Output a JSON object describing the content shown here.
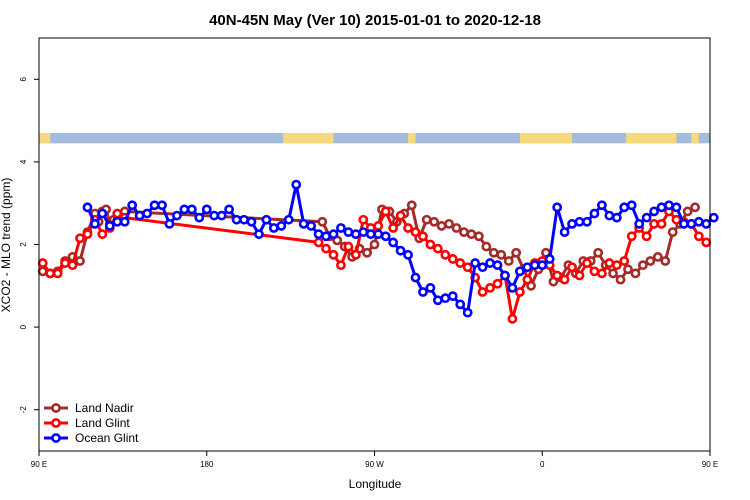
{
  "chart_data": {
    "type": "line",
    "title": "40N-45N May (Ver 10)   2015-01-01 to 2020-12-18",
    "xlabel": "Longitude",
    "ylabel": "XCO2 - MLO trend (ppm)",
    "xlim": [
      90,
      450
    ],
    "ylim": [
      -3,
      7
    ],
    "x_ticks": [
      {
        "value": 90,
        "label": "90 E"
      },
      {
        "value": 180,
        "label": "180"
      },
      {
        "value": 270,
        "label": "90 W"
      },
      {
        "value": 360,
        "label": "0"
      },
      {
        "value": 450,
        "label": "90 E"
      },
      {
        "value": 540,
        "label": "180"
      }
    ],
    "y_ticks": [
      {
        "value": -2,
        "label": "-2"
      },
      {
        "value": 0,
        "label": "0"
      },
      {
        "value": 2,
        "label": "2"
      },
      {
        "value": 4,
        "label": "4"
      },
      {
        "value": 6,
        "label": "6"
      }
    ],
    "land_ocean_strip": {
      "y_range": [
        4.45,
        4.7
      ],
      "ocean_color": "#a3bcdc",
      "land_color": "#f5d97a",
      "land_segments": [
        [
          90,
          96
        ],
        [
          221,
          248
        ],
        [
          288,
          292
        ],
        [
          348,
          376
        ],
        [
          405,
          432
        ],
        [
          440,
          444
        ]
      ]
    },
    "legend_position": "bottom-left",
    "series": [
      {
        "name": "Land Nadir",
        "color": "#a52a2a",
        "x": [
          92,
          96,
          100,
          104,
          108,
          112,
          116,
          120,
          122,
          124,
          126,
          128,
          130,
          132,
          136,
          242,
          246,
          250,
          254,
          258,
          262,
          266,
          270,
          274,
          278,
          282,
          286,
          290,
          294,
          298,
          302,
          306,
          310,
          314,
          318,
          322,
          326,
          330,
          334,
          338,
          342,
          346,
          350,
          354,
          358,
          362,
          366,
          370,
          374,
          378,
          382,
          386,
          390,
          394,
          398,
          402,
          406,
          410,
          414,
          418,
          422,
          426,
          430,
          434,
          438,
          442
        ],
        "values": [
          1.35,
          1.3,
          1.35,
          1.6,
          1.7,
          1.6,
          2.3,
          2.75,
          2.55,
          2.8,
          2.85,
          2.5,
          2.6,
          2.7,
          2.8,
          2.55,
          2.2,
          2.1,
          1.95,
          1.7,
          1.9,
          1.8,
          2.0,
          2.85,
          2.8,
          2.55,
          2.75,
          2.95,
          2.15,
          2.6,
          2.55,
          2.45,
          2.5,
          2.4,
          2.3,
          2.25,
          2.2,
          1.95,
          1.8,
          1.75,
          1.6,
          1.8,
          1.4,
          1.0,
          1.4,
          1.8,
          1.1,
          1.2,
          1.5,
          1.3,
          1.6,
          1.6,
          1.8,
          1.5,
          1.3,
          1.15,
          1.4,
          1.3,
          1.5,
          1.6,
          1.7,
          1.6,
          2.3,
          2.5,
          2.8,
          2.9
        ]
      },
      {
        "name": "Land Glint",
        "color": "#ff0000",
        "x": [
          92,
          96,
          100,
          104,
          108,
          112,
          116,
          120,
          124,
          128,
          132,
          136,
          240,
          244,
          248,
          252,
          256,
          260,
          264,
          268,
          272,
          276,
          280,
          284,
          288,
          292,
          296,
          300,
          304,
          308,
          312,
          316,
          320,
          324,
          328,
          332,
          336,
          340,
          344,
          348,
          352,
          356,
          360,
          364,
          368,
          372,
          376,
          380,
          384,
          388,
          392,
          396,
          400,
          404,
          408,
          412,
          416,
          420,
          424,
          428,
          432,
          436,
          440,
          444,
          448
        ],
        "values": [
          1.55,
          1.3,
          1.3,
          1.55,
          1.5,
          2.15,
          2.25,
          2.6,
          2.25,
          2.4,
          2.75,
          2.65,
          2.05,
          1.9,
          1.75,
          1.5,
          1.95,
          1.75,
          2.6,
          2.4,
          2.45,
          2.8,
          2.4,
          2.7,
          2.4,
          2.3,
          2.2,
          2.0,
          1.9,
          1.75,
          1.65,
          1.55,
          1.45,
          1.2,
          0.85,
          0.95,
          1.05,
          1.25,
          0.2,
          0.85,
          1.15,
          1.55,
          1.6,
          1.5,
          1.25,
          1.15,
          1.45,
          1.25,
          1.55,
          1.35,
          1.3,
          1.55,
          1.5,
          1.6,
          2.2,
          2.4,
          2.2,
          2.5,
          2.5,
          2.8,
          2.6,
          2.55,
          2.5,
          2.2,
          2.05
        ]
      },
      {
        "name": "Ocean Glint",
        "color": "#0000ff",
        "x": [
          116,
          120,
          124,
          128,
          132,
          136,
          140,
          144,
          148,
          152,
          156,
          160,
          164,
          168,
          172,
          176,
          180,
          184,
          188,
          192,
          196,
          200,
          204,
          208,
          212,
          216,
          220,
          224,
          228,
          232,
          236,
          240,
          244,
          248,
          252,
          256,
          260,
          264,
          268,
          272,
          276,
          280,
          284,
          288,
          292,
          296,
          300,
          304,
          308,
          312,
          316,
          320,
          324,
          328,
          332,
          336,
          340,
          344,
          348,
          352,
          356,
          360,
          364,
          368,
          372,
          376,
          380,
          384,
          388,
          392,
          396,
          400,
          404,
          408,
          412,
          416,
          420,
          424,
          428,
          432,
          436,
          440,
          444,
          448,
          452
        ],
        "values": [
          2.9,
          2.5,
          2.75,
          2.45,
          2.55,
          2.55,
          2.95,
          2.7,
          2.75,
          2.95,
          2.95,
          2.5,
          2.7,
          2.85,
          2.85,
          2.65,
          2.85,
          2.7,
          2.7,
          2.85,
          2.6,
          2.6,
          2.55,
          2.25,
          2.6,
          2.4,
          2.45,
          2.6,
          3.45,
          2.5,
          2.45,
          2.25,
          2.2,
          2.25,
          2.4,
          2.3,
          2.25,
          2.3,
          2.25,
          2.25,
          2.2,
          2.05,
          1.85,
          1.75,
          1.2,
          0.85,
          0.95,
          0.65,
          0.7,
          0.75,
          0.55,
          0.35,
          1.55,
          1.45,
          1.55,
          1.5,
          1.25,
          0.95,
          1.35,
          1.45,
          1.5,
          1.5,
          1.65,
          2.9,
          2.3,
          2.5,
          2.55,
          2.55,
          2.75,
          2.95,
          2.7,
          2.65,
          2.9,
          2.95,
          2.5,
          2.65,
          2.8,
          2.9,
          2.95,
          2.9,
          2.5,
          2.5,
          2.55,
          2.5,
          2.65
        ]
      }
    ]
  }
}
